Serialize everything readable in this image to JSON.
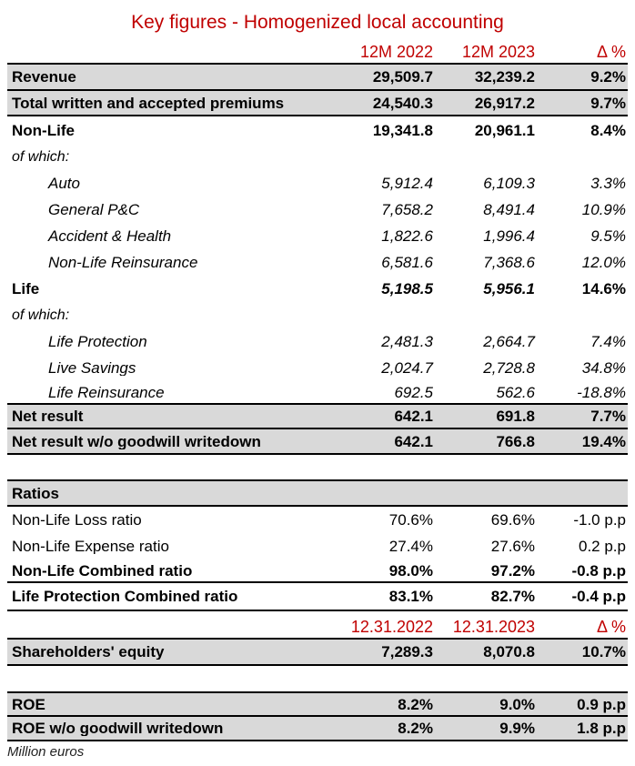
{
  "title": "Key figures - Homogenized local accounting",
  "footnote": "Million euros",
  "colors": {
    "accent_red": "#C00000",
    "row_gray": "#D9D9D9",
    "border_black": "#000000"
  },
  "header1": {
    "col1": "12M 2022",
    "col2": "12M 2023",
    "col3": "Δ %"
  },
  "header2": {
    "col1": "12.31.2022",
    "col2": "12.31.2023",
    "col3": "Δ %"
  },
  "main_table": {
    "rows": [
      {
        "label": "Revenue",
        "v1": "29,509.7",
        "v2": "32,239.2",
        "delta": "9.2%"
      },
      {
        "label": "Total written and accepted premiums",
        "v1": "24,540.3",
        "v2": "26,917.2",
        "delta": "9.7%"
      },
      {
        "label": "Non-Life",
        "v1": "19,341.8",
        "v2": "20,961.1",
        "delta": "8.4%"
      },
      {
        "label": "of which:",
        "v1": "",
        "v2": "",
        "delta": ""
      },
      {
        "label": "Auto",
        "v1": "5,912.4",
        "v2": "6,109.3",
        "delta": "3.3%"
      },
      {
        "label": "General P&C",
        "v1": "7,658.2",
        "v2": "8,491.4",
        "delta": "10.9%"
      },
      {
        "label": "Accident & Health",
        "v1": "1,822.6",
        "v2": "1,996.4",
        "delta": "9.5%"
      },
      {
        "label": "Non-Life Reinsurance",
        "v1": "6,581.6",
        "v2": "7,368.6",
        "delta": "12.0%"
      },
      {
        "label": "Life",
        "v1": "5,198.5",
        "v2": "5,956.1",
        "delta": "14.6%"
      },
      {
        "label": "of which:",
        "v1": "",
        "v2": "",
        "delta": ""
      },
      {
        "label": "Life Protection",
        "v1": "2,481.3",
        "v2": "2,664.7",
        "delta": "7.4%"
      },
      {
        "label": "Live Savings",
        "v1": "2,024.7",
        "v2": "2,728.8",
        "delta": "34.8%"
      },
      {
        "label": "Life Reinsurance",
        "v1": "692.5",
        "v2": "562.6",
        "delta": "-18.8%"
      },
      {
        "label": "Net result",
        "v1": "642.1",
        "v2": "691.8",
        "delta": "7.7%"
      },
      {
        "label": "Net result w/o goodwill writedown",
        "v1": "642.1",
        "v2": "766.8",
        "delta": "19.4%"
      }
    ]
  },
  "ratios_table": {
    "section_label": "Ratios",
    "rows": [
      {
        "label": "Non-Life Loss ratio",
        "v1": "70.6%",
        "v2": "69.6%",
        "delta": "-1.0 p.p"
      },
      {
        "label": "Non-Life Expense ratio",
        "v1": "27.4%",
        "v2": "27.6%",
        "delta": "0.2 p.p"
      },
      {
        "label": "Non-Life Combined ratio",
        "v1": "98.0%",
        "v2": "97.2%",
        "delta": "-0.8 p.p"
      },
      {
        "label": "Life Protection Combined ratio",
        "v1": "83.1%",
        "v2": "82.7%",
        "delta": "-0.4 p.p"
      }
    ]
  },
  "equity_table": {
    "rows": [
      {
        "label": "Shareholders' equity",
        "v1": "7,289.3",
        "v2": "8,070.8",
        "delta": "10.7%"
      }
    ]
  },
  "roe_table": {
    "rows": [
      {
        "label": "ROE",
        "v1": "8.2%",
        "v2": "9.0%",
        "delta": "0.9 p.p"
      },
      {
        "label": "ROE w/o goodwill writedown",
        "v1": "8.2%",
        "v2": "9.9%",
        "delta": "1.8 p.p"
      }
    ]
  }
}
